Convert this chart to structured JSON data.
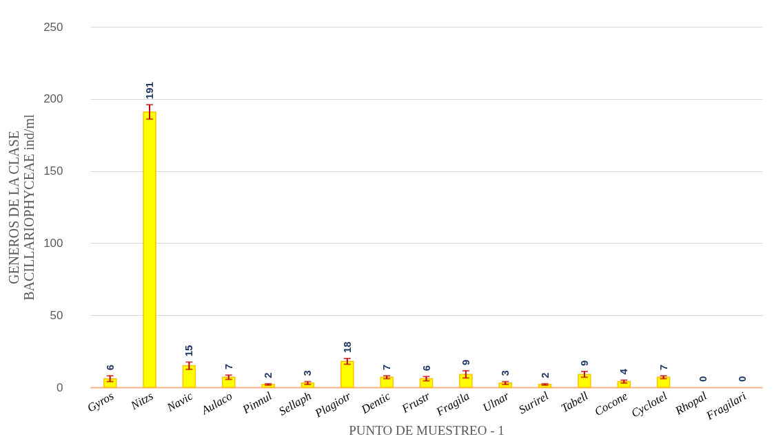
{
  "chart_data": {
    "type": "bar",
    "categories": [
      "Gyros",
      "Nitzs",
      "Navic",
      "Aulaco",
      "Pinnul",
      "Sellaph",
      "Plagiotr",
      "Dentic",
      "Frustr",
      "Fragila",
      "Ulnar",
      "Surirel",
      "Tabell",
      "Cocone",
      "Cyclotel",
      "Rhopal",
      "Fragilari"
    ],
    "values": [
      6,
      191,
      15,
      7,
      2,
      3,
      18,
      7,
      6,
      9,
      3,
      2,
      9,
      4,
      7,
      0,
      0
    ],
    "errors": [
      2,
      5,
      2.5,
      1.5,
      0.5,
      1,
      2,
      1,
      1.5,
      2.5,
      1,
      0.5,
      2,
      1,
      1,
      null,
      null
    ],
    "color": "#ffff00",
    "xlabel": "PUNTO DE MUESTREO - 1",
    "ylabel": "GENEROS DE LA CLASE\nBACILLARIOPHYCEAE  ind/ml",
    "ylim": [
      0,
      250
    ],
    "yticks": [
      0,
      50,
      100,
      150,
      200,
      250
    ],
    "grid": "y",
    "data_labels": true
  }
}
